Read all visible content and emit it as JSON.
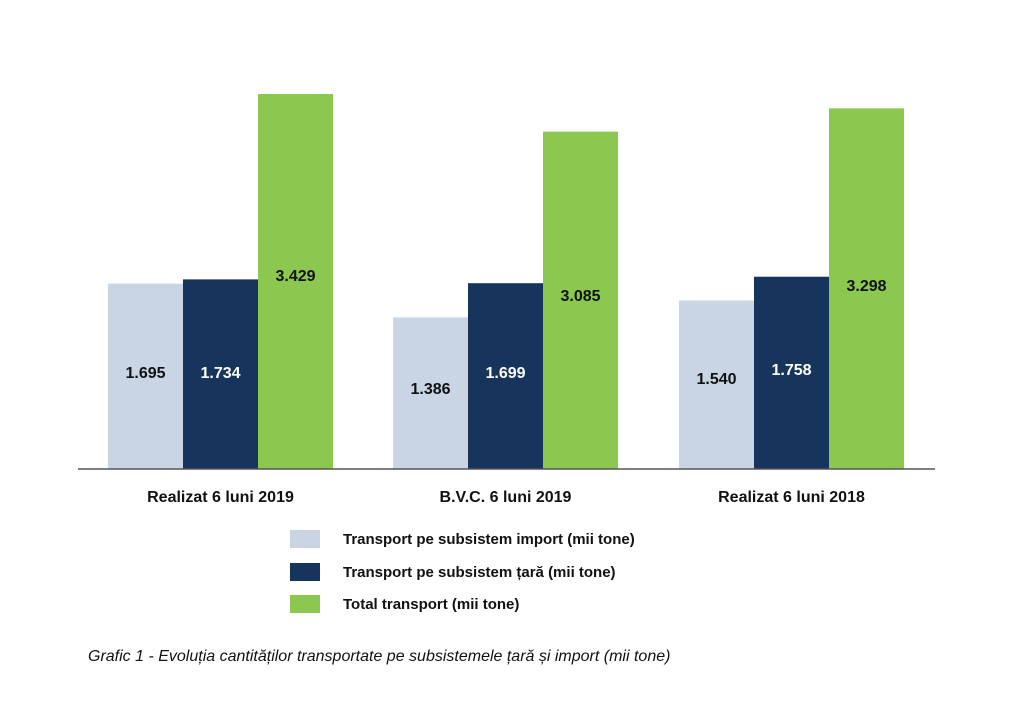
{
  "chart_data": {
    "type": "bar",
    "categories": [
      "Realizat 6 luni 2019",
      "B.V.C. 6 luni 2019",
      "Realizat 6 luni 2018"
    ],
    "series": [
      {
        "name": "Transport pe subsistem import (mii tone)",
        "values": [
          1695,
          1386,
          1540
        ],
        "labels": [
          "1.695",
          "1.386",
          "1.540"
        ],
        "color": "#c9d4e4"
      },
      {
        "name": "Transport pe subsistem țară (mii tone)",
        "values": [
          1734,
          1699,
          1758
        ],
        "labels": [
          "1.734",
          "1.699",
          "1.758"
        ],
        "color": "#17355c"
      },
      {
        "name": "Total transport (mii tone)",
        "values": [
          3429,
          3085,
          3298
        ],
        "labels": [
          "3.429",
          "3.085",
          "3.298"
        ],
        "color": "#8cc850"
      }
    ],
    "label_colors": [
      "#111111",
      "#ffffff",
      "#111111"
    ],
    "axis_color": "#555555",
    "ylim": [
      0,
      3429
    ],
    "grid": false,
    "legend_position": "bottom",
    "title": "",
    "xlabel": "",
    "ylabel": ""
  },
  "caption": "Grafic 1 - Evoluția cantităților  transportate pe subsistemele țară și import (mii tone)"
}
